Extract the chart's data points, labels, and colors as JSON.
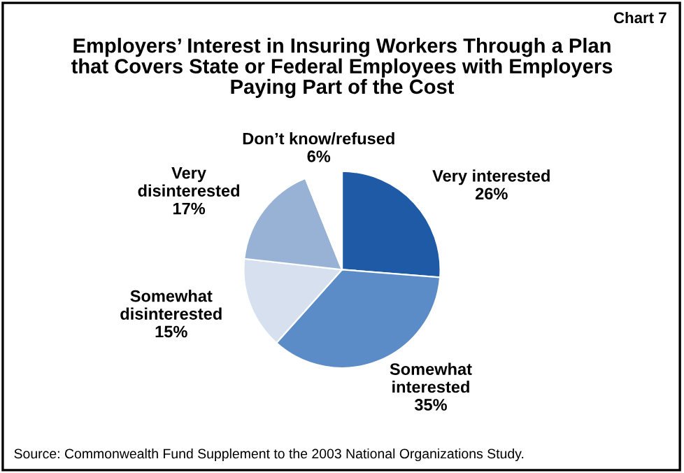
{
  "chart_data": {
    "type": "pie",
    "title": "Employers’ Interest in Insuring Workers Through a Plan that Covers State or Federal Employees with Employers Paying Part of the Cost",
    "categories": [
      "Very interested",
      "Somewhat interested",
      "Somewhat disinterested",
      "Very disinterested",
      "Don’t know/refused"
    ],
    "values": [
      26,
      35,
      15,
      17,
      6
    ],
    "value_labels": [
      "26%",
      "35%",
      "15%",
      "17%",
      "6%"
    ],
    "colors": [
      "#1f5aa6",
      "#5b8cc8",
      "#d6e0ef",
      "#98b2d6",
      "#ffffff"
    ],
    "annotations": [
      "Chart 7",
      "Source: Commonwealth Fund Supplement to the 2003 National Organizations Study."
    ]
  }
}
